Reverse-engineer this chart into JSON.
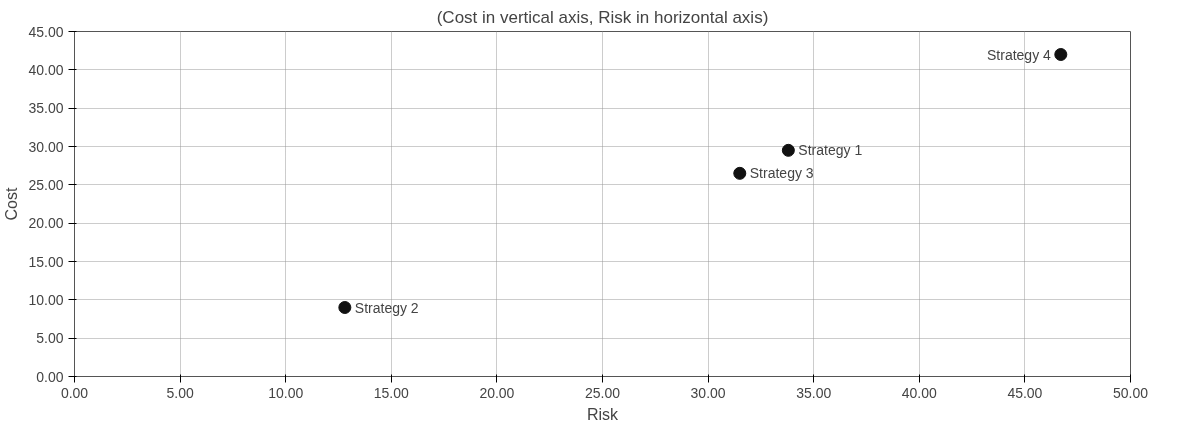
{
  "chart_data": {
    "type": "scatter",
    "title": "(Cost in vertical axis, Risk in horizontal axis)",
    "xlabel": "Risk",
    "ylabel": "Cost",
    "x": [
      33.8,
      12.8,
      31.5,
      46.7
    ],
    "series": [
      {
        "color": "#111111",
        "values": [
          29.5,
          9.0,
          26.5,
          42.0
        ]
      }
    ],
    "annotations": [
      {
        "text": "Strategy 1",
        "x": 33.8,
        "y": 29.5
      },
      {
        "text": "Strategy 2",
        "x": 12.8,
        "y": 9.0
      },
      {
        "text": "Strategy 3",
        "x": 31.5,
        "y": 26.5
      },
      {
        "text": "Strategy 4",
        "x": 46.7,
        "y": 42.0
      }
    ],
    "xlim": [
      0,
      50
    ],
    "ylim": [
      0,
      45
    ],
    "xticks": [
      {
        "value": 0,
        "label": "0.00"
      },
      {
        "value": 5,
        "label": "5.00"
      },
      {
        "value": 10,
        "label": "10.00"
      },
      {
        "value": 15,
        "label": "15.00"
      },
      {
        "value": 20,
        "label": "20.00"
      },
      {
        "value": 25,
        "label": "25.00"
      },
      {
        "value": 30,
        "label": "30.00"
      },
      {
        "value": 35,
        "label": "35.00"
      },
      {
        "value": 40,
        "label": "40.00"
      },
      {
        "value": 45,
        "label": "45.00"
      },
      {
        "value": 50,
        "label": "50.00"
      }
    ],
    "yticks": [
      {
        "value": 0,
        "label": "0.00"
      },
      {
        "value": 5,
        "label": "5.00"
      },
      {
        "value": 10,
        "label": "10.00"
      },
      {
        "value": 15,
        "label": "15.00"
      },
      {
        "value": 20,
        "label": "20.00"
      },
      {
        "value": 25,
        "label": "25.00"
      },
      {
        "value": 30,
        "label": "30.00"
      },
      {
        "value": 35,
        "label": "35.00"
      },
      {
        "value": 40,
        "label": "40.00"
      },
      {
        "value": 45,
        "label": "45.00"
      }
    ],
    "grid": true,
    "marker": "circle"
  }
}
